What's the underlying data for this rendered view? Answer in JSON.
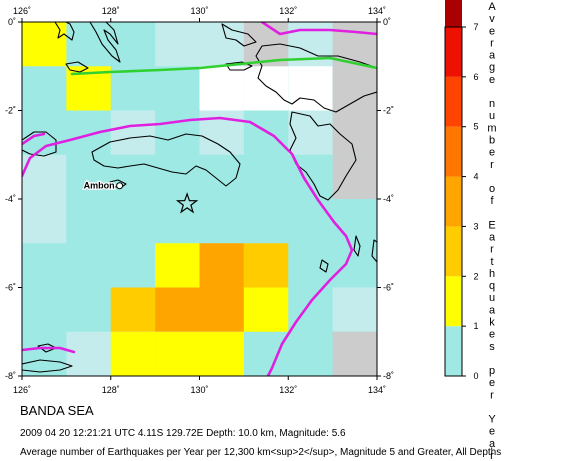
{
  "map": {
    "lon_ticks": [
      "126˚",
      "128˚",
      "130˚",
      "132˚",
      "134˚"
    ],
    "lat_ticks": [
      "0˚",
      "-2˚",
      "-4˚",
      "-6˚",
      "-8˚"
    ],
    "lon_range": [
      126,
      134
    ],
    "lat_range": [
      -8,
      0
    ],
    "cell_size_deg": 1,
    "place_label": "Ambon",
    "place": {
      "lon": 128.2,
      "lat": -3.7
    },
    "epicenter": {
      "lon": 129.72,
      "lat": -4.11,
      "symbol": "star-icon"
    },
    "colors": {
      "background_cell": "#9ee9e4",
      "light_cell": "#c4ecec",
      "empty_cell": "#ffffff",
      "gray_cell": "#cccccc",
      "plate_boundary": "#e020e0",
      "fault_line": "#30d030",
      "coastline": "#000000"
    },
    "rate_cells": [
      {
        "lon": 126,
        "lat": -1,
        "rate": 1.1
      },
      {
        "lon": 127,
        "lat": -2,
        "rate": 1.1
      },
      {
        "lon": 128,
        "lat": -7,
        "rate": 2.8
      },
      {
        "lon": 128,
        "lat": -8,
        "rate": 1.4
      },
      {
        "lon": 129,
        "lat": -6,
        "rate": 1.6
      },
      {
        "lon": 129,
        "lat": -7,
        "rate": 3.2
      },
      {
        "lon": 129,
        "lat": -8,
        "rate": 1.3
      },
      {
        "lon": 130,
        "lat": -6,
        "rate": 3.3
      },
      {
        "lon": 130,
        "lat": -7,
        "rate": 3.6
      },
      {
        "lon": 130,
        "lat": -8,
        "rate": 1.2
      },
      {
        "lon": 131,
        "lat": -6,
        "rate": 2.6
      },
      {
        "lon": 131,
        "lat": -7,
        "rate": 1.3
      }
    ],
    "light_cells": [
      {
        "lon": 126,
        "lat": -4
      },
      {
        "lon": 126,
        "lat": -5
      },
      {
        "lon": 129,
        "lat": -1
      },
      {
        "lon": 130,
        "lat": -1
      },
      {
        "lon": 131,
        "lat": -1
      },
      {
        "lon": 132,
        "lat": -1
      },
      {
        "lon": 128,
        "lat": -3
      },
      {
        "lon": 130,
        "lat": -3
      },
      {
        "lon": 132,
        "lat": -3
      },
      {
        "lon": 133,
        "lat": -7
      },
      {
        "lon": 127,
        "lat": -8
      }
    ],
    "empty_cells": [
      {
        "lon": 130,
        "lat": -2
      },
      {
        "lon": 131,
        "lat": -2
      },
      {
        "lon": 132,
        "lat": -2
      }
    ],
    "gray_cells": [
      {
        "lon": 131,
        "lat": -1
      },
      {
        "lon": 133,
        "lat": -1
      },
      {
        "lon": 133,
        "lat": -2
      },
      {
        "lon": 133,
        "lat": -3
      },
      {
        "lon": 133,
        "lat": -4
      },
      {
        "lon": 133,
        "lat": -8
      }
    ]
  },
  "scale": {
    "title": "Average number of Earthquakes per Year",
    "ticks": [
      "0",
      "1",
      "2",
      "3",
      "4",
      "5",
      "6",
      "7"
    ],
    "range": [
      0,
      7
    ],
    "colors": [
      "#9ee9e4",
      "#ffff00",
      "#ffcc00",
      "#ffa500",
      "#ff7700",
      "#ff4400",
      "#ee1100",
      "#aa0000"
    ]
  },
  "caption": {
    "title": "BANDA SEA",
    "event": "2009 04 20 12:21:21 UTC 4.11S 129.72E Depth: 10.0 km, Magnitude: 5.6",
    "description": "Average number of Earthquakes per Year per 12,300 km<sup>2</sup>, Magnitude 5 and Greater, All Depths"
  }
}
